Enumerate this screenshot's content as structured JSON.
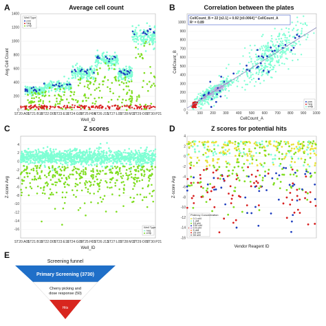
{
  "panels": {
    "A": {
      "letter": "A",
      "title": "Average cell count"
    },
    "B": {
      "letter": "B",
      "title": "Correlation between the plates"
    },
    "C": {
      "letter": "C",
      "title": "Z scores"
    },
    "D": {
      "letter": "D",
      "title": "Z scores for potential hits"
    },
    "E": {
      "letter": "E",
      "title": "Screening funnel"
    }
  },
  "colors": {
    "cyan": "#7fffd4",
    "blue": "#1f3fbf",
    "green": "#7fdd1f",
    "red": "#d81e1e",
    "yellow": "#e8e23a",
    "funnel_blue": "#1f6fc8",
    "funnel_white": "#ffffff",
    "funnel_red": "#d8261e"
  },
  "funnel": {
    "levels": [
      {
        "label": "Primary Screening (3730)"
      },
      {
        "label": "Cherry picking and dose response (50)"
      },
      {
        "label": "Hits"
      }
    ]
  },
  "chart_data": [
    {
      "id": "A",
      "type": "scatter",
      "title": "Average cell count",
      "xlabel": "Well_ID",
      "ylabel": "Avg Cell Count",
      "ylim": [
        0,
        1400
      ],
      "yticks": [
        0,
        200,
        400,
        600,
        800,
        1000,
        1200,
        1400
      ],
      "xticks": [
        "ST20:A01",
        "ST21:B18",
        "ST22:D05",
        "ST23:E16",
        "ST24:G09",
        "ST25:H04",
        "ST26:J15",
        "ST27:L03",
        "ST28:M17",
        "ST29:O07",
        "ST30:P21"
      ],
      "x_plates": [
        1,
        30
      ],
      "legend": {
        "position": "top-left",
        "title": "Well Type",
        "entries": [
          "pos",
          "neg",
          "cmp"
        ]
      },
      "bands": [
        {
          "series": "cmp",
          "range": [
            2,
            6
          ],
          "y_center": 280,
          "spread": 50
        },
        {
          "series": "cmp",
          "range": [
            6,
            12
          ],
          "y_center": 350,
          "spread": 60
        },
        {
          "series": "cmp",
          "range": [
            12,
            17
          ],
          "y_center": 540,
          "spread": 70
        },
        {
          "series": "cmp",
          "range": [
            17,
            22
          ],
          "y_center": 720,
          "spread": 80
        },
        {
          "series": "cmp",
          "range": [
            22,
            25
          ],
          "y_center": 520,
          "spread": 70
        },
        {
          "series": "cmp",
          "range": [
            25,
            30
          ],
          "y_center": 1080,
          "spread": 110
        }
      ]
    },
    {
      "id": "B",
      "type": "scatter",
      "title": "Correlation between the plates",
      "xlabel": "CellCount_A",
      "ylabel": "CellCount_B",
      "xlim": [
        0,
        1000
      ],
      "ylim": [
        0,
        1100
      ],
      "fit_equation": "CellCount_B = 22 [±2.1] + 0.92 [±0.0064] * CellCount_A",
      "r_squared": "R² = 0.89",
      "fit": {
        "intercept": 22,
        "slope": 0.92
      },
      "legend": {
        "position": "bottom-right",
        "entries": [
          "pos",
          "neg",
          "cmp"
        ]
      }
    },
    {
      "id": "C",
      "type": "scatter",
      "title": "Z scores",
      "xlabel": "Well_ID",
      "ylabel": "Z-score Avg",
      "ylim": [
        -18,
        6
      ],
      "yticks": [
        4,
        2,
        0,
        -2,
        -4,
        -6,
        -8,
        -10,
        -12,
        -14,
        -16
      ],
      "xticks": [
        "ST20:A01",
        "ST21:B19",
        "ST22:D05",
        "ST23:E16",
        "ST24:G09",
        "ST25:H03",
        "ST26:J13",
        "ST27:L03",
        "ST28:M17",
        "ST29:O07",
        "ST30:P21"
      ],
      "legend": {
        "position": "bottom-right",
        "title": "Well Type",
        "entries": [
          "neg",
          "cmp"
        ]
      }
    },
    {
      "id": "D",
      "type": "scatter",
      "title": "Z scores for potential hits",
      "xlabel": "Vendor Reagent ID",
      "ylabel": "Z-score Avg",
      "ylim": [
        -16,
        4
      ],
      "yticks": [
        4,
        2,
        0,
        -2,
        -4,
        -6,
        -8,
        -10,
        -12,
        -14,
        -16
      ],
      "legend": {
        "position": "bottom-left",
        "title": "Potency Concentration",
        "entries": [
          "0.1 uM",
          "1 uM",
          "10 uM",
          "100 uM",
          "0.5 uM",
          "5 uM",
          "25 uM",
          "50 uM"
        ]
      }
    }
  ]
}
